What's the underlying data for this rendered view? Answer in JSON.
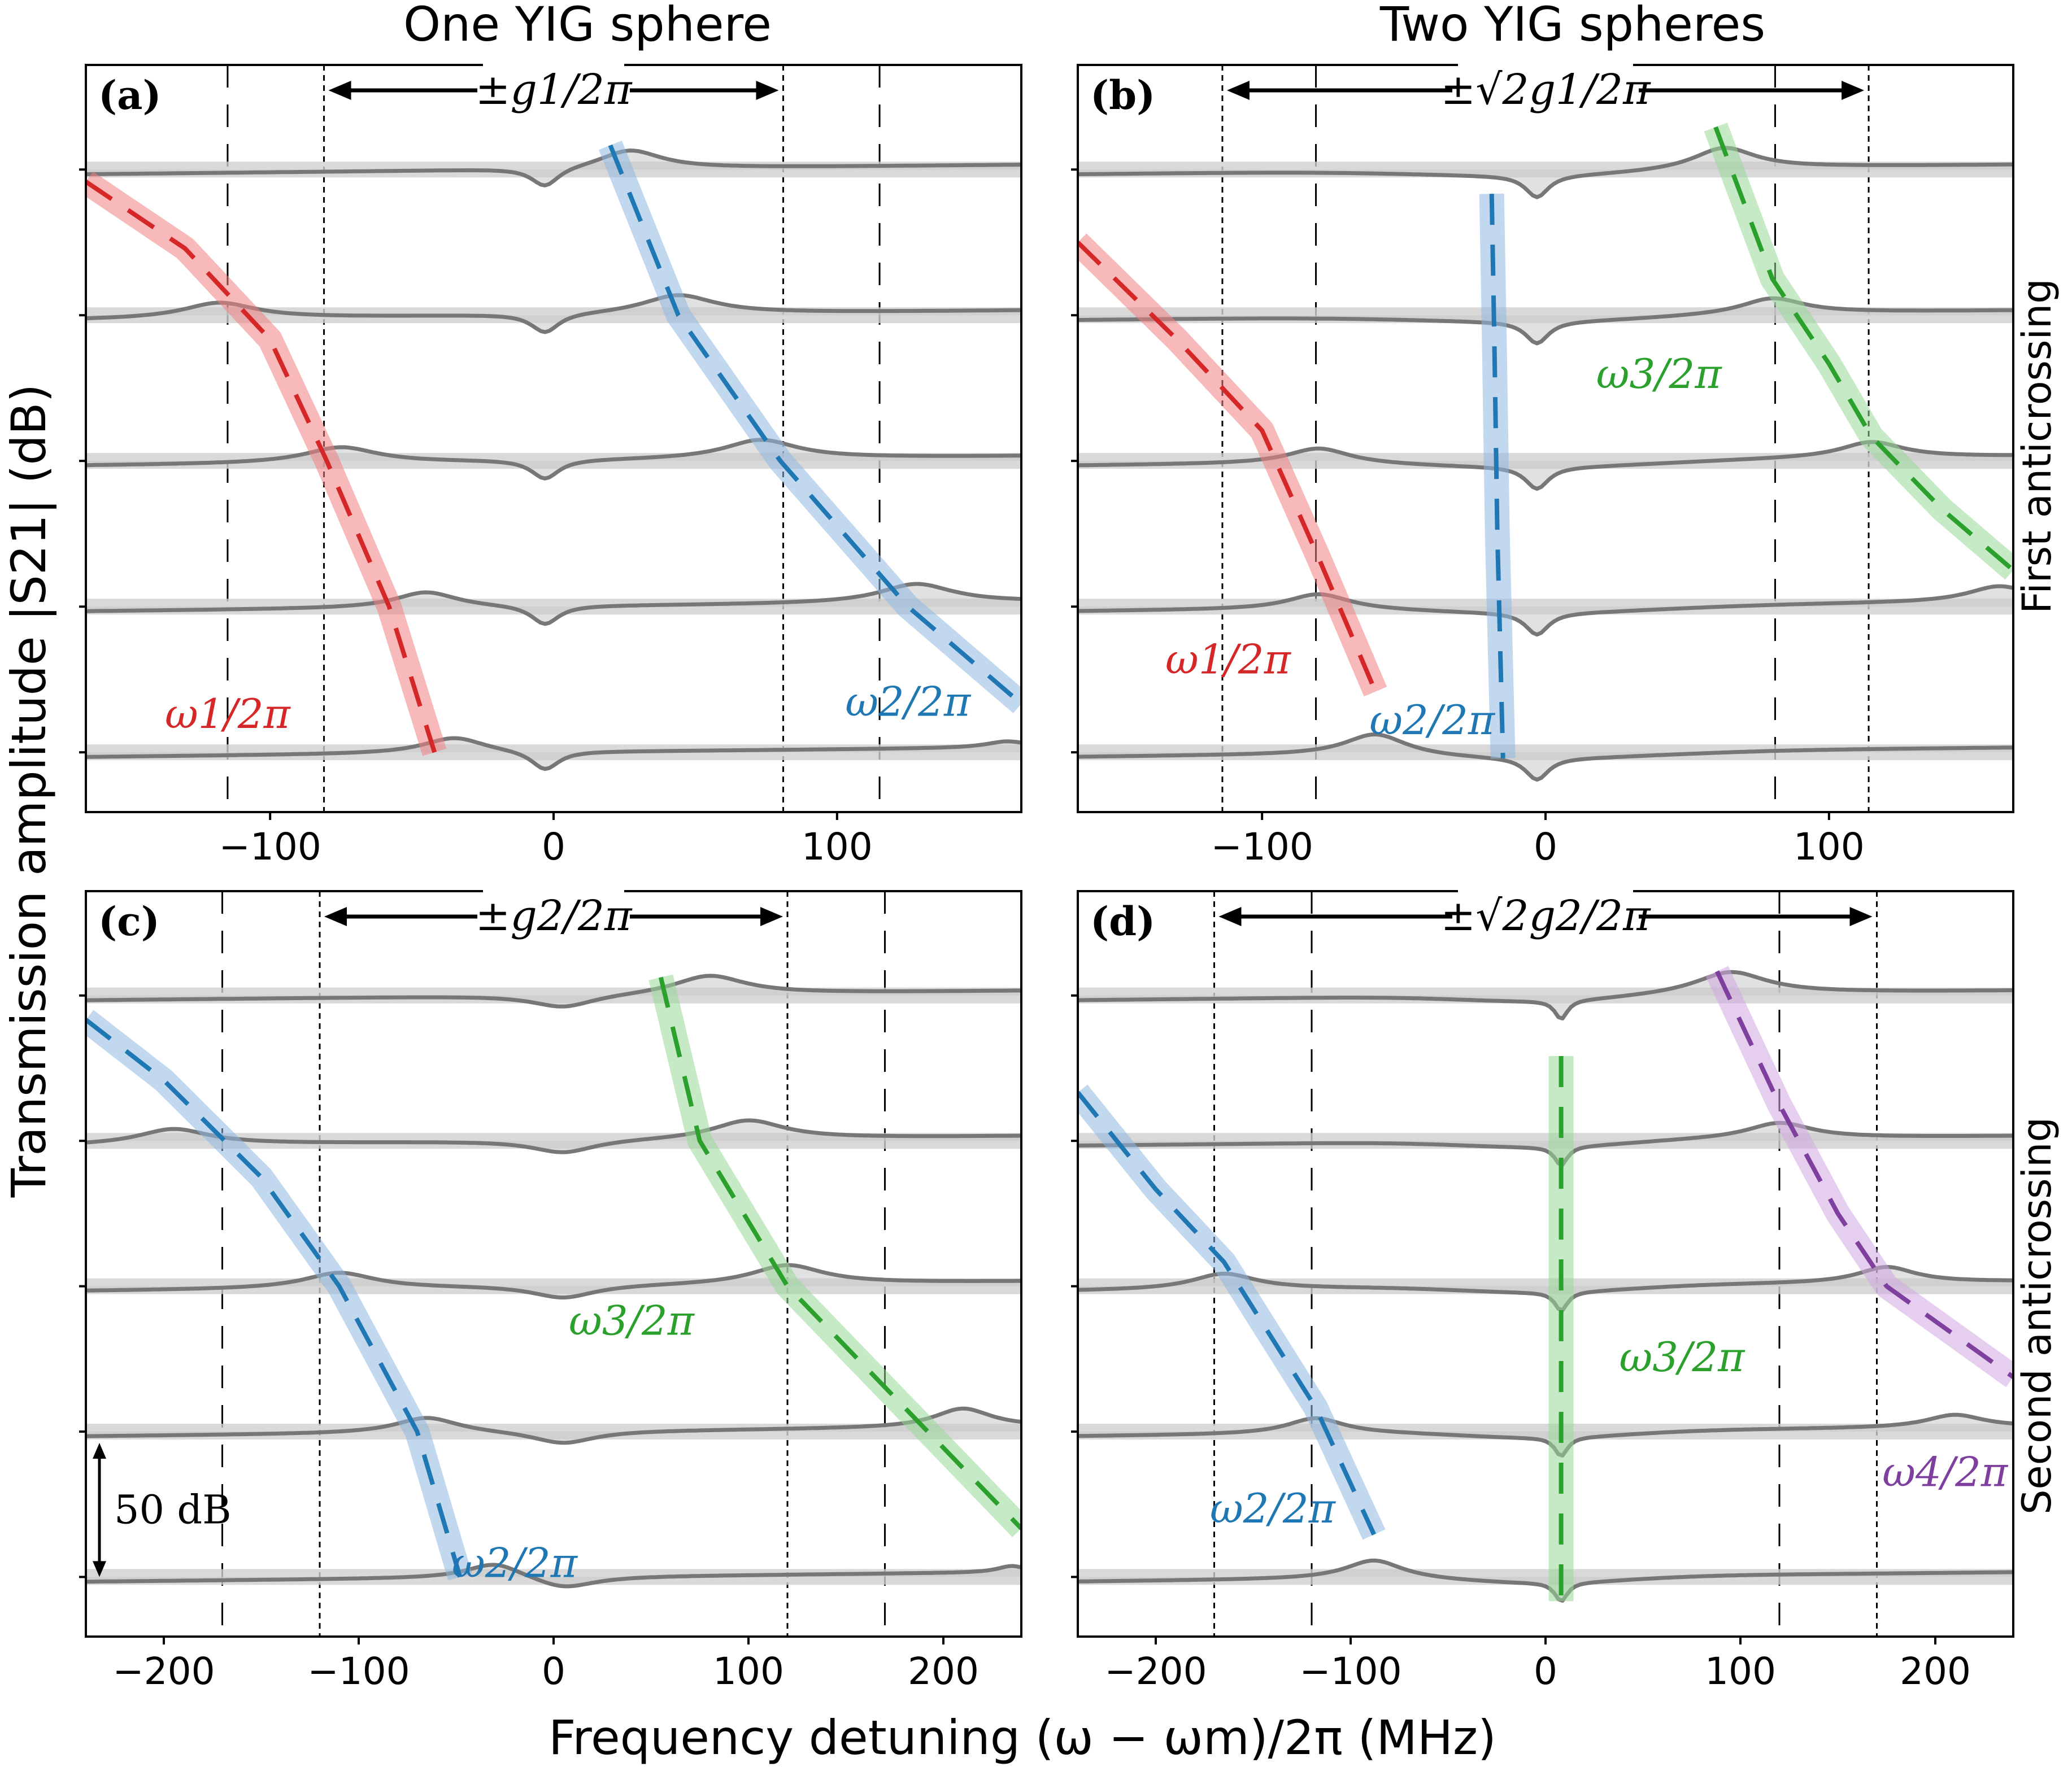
{
  "figure": {
    "col_titles": [
      "One YIG sphere",
      "Two YIG spheres"
    ],
    "ylabel": "Transmission amplitude |S21| (dB)",
    "xlabel": "Frequency detuning (ω − ωm)/2π (MHz)",
    "row_labels": [
      "First anticrossing",
      "Second anticrossing"
    ],
    "scale_bar_label": "50 dB"
  },
  "chart_data": [
    {
      "id": "a",
      "panel_label": "(a)",
      "type": "line",
      "xlim": [
        -165,
        165
      ],
      "xticks": [
        -100,
        0,
        100
      ],
      "xticklabels": [
        "−100",
        "0",
        "100"
      ],
      "gap_label": "±g1/2π",
      "coupling_lines": [
        -81,
        81
      ],
      "dashed_guides": [
        -115,
        115
      ],
      "trace_baselines": [
        1,
        0.76,
        0.52,
        0.28,
        0.04
      ],
      "sweeps": [
        {
          "xL": -165,
          "xR": 165,
          "anti": 0,
          "peaks": [
            {
              "x": 27,
              "h": 0.12,
              "w": 30
            }
          ]
        },
        {
          "xL": -165,
          "xR": 165,
          "anti": 0,
          "peaks": [
            {
              "x": -118,
              "h": 0.1,
              "w": 35
            },
            {
              "x": 44,
              "h": 0.12,
              "w": 35
            }
          ]
        },
        {
          "xL": -165,
          "xR": 165,
          "anti": 0,
          "peaks": [
            {
              "x": -75,
              "h": 0.1,
              "w": 35
            },
            {
              "x": 73,
              "h": 0.12,
              "w": 35
            }
          ]
        },
        {
          "xL": -165,
          "xR": 165,
          "anti": 0,
          "peaks": [
            {
              "x": -45,
              "h": 0.1,
              "w": 30
            },
            {
              "x": 128,
              "h": 0.12,
              "w": 35
            }
          ]
        },
        {
          "xL": -165,
          "xR": 165,
          "anti": 0,
          "peaks": [
            {
              "x": -35,
              "h": 0.1,
              "w": 30
            },
            {
              "x": 160,
              "h": 0.04,
              "w": 20
            }
          ]
        }
      ],
      "dips": [
        {
          "x": -3,
          "d": 0.12,
          "w": 12
        }
      ],
      "modes": [
        {
          "name": "ω1/2π",
          "color": "#d62728",
          "band": "#f08080",
          "label_pos": [
            -115,
            0.08
          ],
          "points": [
            [
              -165,
              0.98
            ],
            [
              -130,
              0.87
            ],
            [
              -100,
              0.72
            ],
            [
              -80,
              0.52
            ],
            [
              -58,
              0.28
            ],
            [
              -42,
              0.04
            ]
          ]
        },
        {
          "name": "ω2/2π",
          "color": "#1f77b4",
          "band": "#8fb8e0",
          "label_pos": [
            125,
            0.1
          ],
          "points": [
            [
              20,
              1.04
            ],
            [
              44,
              0.76
            ],
            [
              80,
              0.52
            ],
            [
              125,
              0.28
            ],
            [
              165,
              0.12
            ]
          ]
        }
      ]
    },
    {
      "id": "b",
      "panel_label": "(b)",
      "type": "line",
      "xlim": [
        -165,
        165
      ],
      "xticks": [
        -100,
        0,
        100
      ],
      "xticklabels": [
        "−100",
        "0",
        "100"
      ],
      "gap_label": "±√2g1/2π",
      "coupling_lines": [
        -114,
        114
      ],
      "dashed_guides": [
        -81,
        81
      ],
      "trace_baselines": [
        1,
        0.78,
        0.56,
        0.34,
        0.12
      ],
      "sweeps": [
        {
          "xL": -165,
          "xR": 165,
          "anti": 0.04,
          "peaks": [
            {
              "x": 63,
              "h": 0.14,
              "w": 30
            }
          ]
        },
        {
          "xL": -165,
          "xR": 165,
          "anti": 0.04,
          "peaks": [
            {
              "x": 80,
              "h": 0.1,
              "w": 30
            }
          ]
        },
        {
          "xL": -165,
          "xR": 165,
          "anti": 0.04,
          "peaks": [
            {
              "x": -80,
              "h": 0.1,
              "w": 30
            },
            {
              "x": 115,
              "h": 0.1,
              "w": 30
            }
          ]
        },
        {
          "xL": -165,
          "xR": 165,
          "anti": 0.04,
          "peaks": [
            {
              "x": -80,
              "h": 0.1,
              "w": 30
            },
            {
              "x": 160,
              "h": 0.1,
              "w": 30
            }
          ]
        },
        {
          "xL": -165,
          "xR": 165,
          "anti": 0.04,
          "peaks": [
            {
              "x": -60,
              "h": 0.14,
              "w": 30
            }
          ]
        }
      ],
      "dips": [
        {
          "x": -3,
          "d": 0.14,
          "w": 10
        }
      ],
      "modes": [
        {
          "name": "ω1/2π",
          "color": "#d62728",
          "band": "#f08080",
          "label_pos": [
            -112,
            0.17
          ],
          "points": [
            [
              -165,
              0.88
            ],
            [
              -130,
              0.72
            ],
            [
              -100,
              0.57
            ],
            [
              -80,
              0.36
            ],
            [
              -60,
              0.14
            ]
          ]
        },
        {
          "name": "ω2/2π",
          "color": "#1f77b4",
          "band": "#8fb8e0",
          "label_pos": [
            -40,
            0.07
          ],
          "points": [
            [
              -19,
              0.96
            ],
            [
              -18,
              0.7
            ],
            [
              -17,
              0.4
            ],
            [
              -15,
              0.03
            ]
          ]
        },
        {
          "name": "ω3/2π",
          "color": "#2ca02c",
          "band": "#98d898",
          "label_pos": [
            40,
            0.64
          ],
          "points": [
            [
              60,
              1.07
            ],
            [
              80,
              0.82
            ],
            [
              100,
              0.68
            ],
            [
              115,
              0.56
            ],
            [
              140,
              0.44
            ],
            [
              165,
              0.34
            ]
          ]
        }
      ]
    },
    {
      "id": "c",
      "panel_label": "(c)",
      "type": "line",
      "xlim": [
        -240,
        240
      ],
      "xticks": [
        -200,
        -100,
        0,
        100,
        200
      ],
      "xticklabels": [
        "−200",
        "−100",
        "0",
        "100",
        "200"
      ],
      "gap_label": "±g2/2π",
      "coupling_lines": [
        -120,
        120
      ],
      "dashed_guides": [
        -170,
        170
      ],
      "trace_baselines": [
        1,
        0.76,
        0.52,
        0.28,
        0.04
      ],
      "sweeps": [
        {
          "xL": -240,
          "xR": 240,
          "anti": 0,
          "peaks": [
            {
              "x": 80,
              "h": 0.12,
              "w": 50
            }
          ]
        },
        {
          "xL": -240,
          "xR": 240,
          "anti": 0,
          "peaks": [
            {
              "x": -195,
              "h": 0.1,
              "w": 50
            },
            {
              "x": 100,
              "h": 0.12,
              "w": 50
            }
          ]
        },
        {
          "xL": -240,
          "xR": 240,
          "anti": 0,
          "peaks": [
            {
              "x": -110,
              "h": 0.1,
              "w": 50
            },
            {
              "x": 120,
              "h": 0.12,
              "w": 50
            }
          ]
        },
        {
          "xL": -240,
          "xR": 240,
          "anti": 0,
          "peaks": [
            {
              "x": -65,
              "h": 0.1,
              "w": 45
            },
            {
              "x": 210,
              "h": 0.12,
              "w": 40
            }
          ]
        },
        {
          "xL": -240,
          "xR": 240,
          "anti": 0,
          "peaks": [
            {
              "x": -30,
              "h": 0.1,
              "w": 40
            },
            {
              "x": 235,
              "h": 0.04,
              "w": 20
            }
          ]
        }
      ],
      "dips": [
        {
          "x": 5,
          "d": 0.08,
          "w": 40
        }
      ],
      "modes": [
        {
          "name": "ω2/2π",
          "color": "#1f77b4",
          "band": "#8fb8e0",
          "label_pos": [
            -20,
            0.04
          ],
          "points": [
            [
              -240,
              0.96
            ],
            [
              -200,
              0.86
            ],
            [
              -150,
              0.7
            ],
            [
              -110,
              0.52
            ],
            [
              -70,
              0.28
            ],
            [
              -48,
              0.04
            ]
          ]
        },
        {
          "name": "ω3/2π",
          "color": "#2ca02c",
          "band": "#98d898",
          "label_pos": [
            40,
            0.44
          ],
          "points": [
            [
              55,
              1.03
            ],
            [
              75,
              0.76
            ],
            [
              120,
              0.52
            ],
            [
              180,
              0.32
            ],
            [
              240,
              0.12
            ]
          ]
        }
      ]
    },
    {
      "id": "d",
      "panel_label": "(d)",
      "type": "line",
      "xlim": [
        -240,
        240
      ],
      "xticks": [
        -200,
        -100,
        0,
        100,
        200
      ],
      "xticklabels": [
        "−200",
        "−100",
        "0",
        "100",
        "200"
      ],
      "gap_label": "±√2g2/2π",
      "coupling_lines": [
        -170,
        170
      ],
      "dashed_guides": [
        -120,
        120
      ],
      "trace_baselines": [
        0.98,
        0.79,
        0.56,
        0.27,
        0.05
      ],
      "sweeps": [
        {
          "xL": -240,
          "xR": 240,
          "anti": 0.04,
          "peaks": [
            {
              "x": 95,
              "h": 0.14,
              "w": 50
            }
          ]
        },
        {
          "xL": -240,
          "xR": 240,
          "anti": 0.04,
          "peaks": [
            {
              "x": 120,
              "h": 0.1,
              "w": 45
            }
          ]
        },
        {
          "xL": -240,
          "xR": 240,
          "anti": 0.04,
          "peaks": [
            {
              "x": -165,
              "h": 0.1,
              "w": 45
            },
            {
              "x": 175,
              "h": 0.1,
              "w": 40
            }
          ]
        },
        {
          "xL": -240,
          "xR": 240,
          "anti": 0.04,
          "peaks": [
            {
              "x": -118,
              "h": 0.1,
              "w": 40
            },
            {
              "x": 210,
              "h": 0.08,
              "w": 40
            }
          ]
        },
        {
          "xL": -240,
          "xR": 240,
          "anti": 0.04,
          "peaks": [
            {
              "x": -88,
              "h": 0.12,
              "w": 40
            }
          ]
        }
      ],
      "dips": [
        {
          "x": 8,
          "d": 0.12,
          "w": 8
        }
      ],
      "modes": [
        {
          "name": "ω2/2π",
          "color": "#1f77b4",
          "band": "#8fb8e0",
          "label_pos": [
            -140,
            0.13
          ],
          "points": [
            [
              -240,
              0.84
            ],
            [
              -200,
              0.68
            ],
            [
              -165,
              0.56
            ],
            [
              -118,
              0.32
            ],
            [
              -88,
              0.11
            ]
          ]
        },
        {
          "name": "ω3/2π",
          "color": "#2ca02c",
          "band": "#98d898",
          "label_pos": [
            70,
            0.38
          ],
          "points": [
            [
              8,
              0.9
            ],
            [
              8,
              0.5
            ],
            [
              8,
              0.0
            ]
          ]
        },
        {
          "name": "ω4/2π",
          "color": "#7f3f9f",
          "band": "#d2a8e0",
          "label_pos": [
            205,
            0.19
          ],
          "points": [
            [
              88,
              1.04
            ],
            [
              120,
              0.82
            ],
            [
              150,
              0.64
            ],
            [
              175,
              0.52
            ],
            [
              240,
              0.37
            ]
          ]
        }
      ]
    }
  ]
}
